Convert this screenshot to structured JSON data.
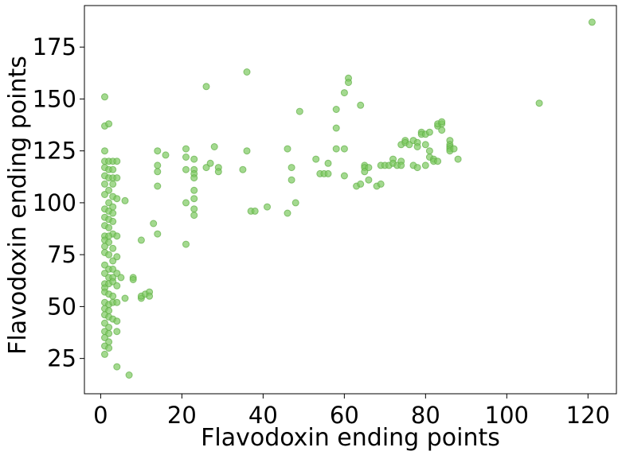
{
  "chart_data": {
    "type": "scatter",
    "title": "",
    "xlabel": "Flavodoxin ending points",
    "ylabel": "Flavodoxin ending points",
    "xlim": [
      -4,
      127
    ],
    "ylim": [
      8,
      195
    ],
    "x_ticks": [
      0,
      20,
      40,
      60,
      80,
      100,
      120
    ],
    "y_ticks": [
      25,
      50,
      75,
      100,
      125,
      150,
      175
    ],
    "grid": false,
    "legend": "none",
    "marker_color": "#7cc95f",
    "marker_edge_color": "#5fae45",
    "marker_opacity": 0.7,
    "points": [
      [
        1,
        151
      ],
      [
        1,
        137
      ],
      [
        2,
        138
      ],
      [
        1,
        125
      ],
      [
        1,
        120
      ],
      [
        2,
        120
      ],
      [
        3,
        120
      ],
      [
        4,
        120
      ],
      [
        1,
        117
      ],
      [
        2,
        116
      ],
      [
        3,
        116
      ],
      [
        1,
        113
      ],
      [
        2,
        112
      ],
      [
        3,
        112
      ],
      [
        4,
        112
      ],
      [
        1,
        109
      ],
      [
        3,
        109
      ],
      [
        2,
        106
      ],
      [
        1,
        104
      ],
      [
        3,
        103
      ],
      [
        4,
        102
      ],
      [
        6,
        101
      ],
      [
        2,
        100
      ],
      [
        3,
        98
      ],
      [
        1,
        97
      ],
      [
        2,
        96
      ],
      [
        3,
        95
      ],
      [
        1,
        93
      ],
      [
        2,
        92
      ],
      [
        3,
        91
      ],
      [
        1,
        89
      ],
      [
        2,
        88
      ],
      [
        3,
        85
      ],
      [
        1,
        84
      ],
      [
        2,
        84
      ],
      [
        4,
        84
      ],
      [
        1,
        82
      ],
      [
        2,
        81
      ],
      [
        1,
        79
      ],
      [
        3,
        78
      ],
      [
        1,
        76
      ],
      [
        2,
        75
      ],
      [
        3,
        72
      ],
      [
        4,
        74
      ],
      [
        1,
        70
      ],
      [
        2,
        68
      ],
      [
        3,
        68
      ],
      [
        1,
        66
      ],
      [
        4,
        66
      ],
      [
        2,
        64
      ],
      [
        3,
        64
      ],
      [
        5,
        64
      ],
      [
        1,
        61
      ],
      [
        2,
        61
      ],
      [
        3,
        62
      ],
      [
        1,
        59
      ],
      [
        4,
        60
      ],
      [
        1,
        57
      ],
      [
        2,
        56
      ],
      [
        3,
        55
      ],
      [
        6,
        54
      ],
      [
        1,
        52
      ],
      [
        2,
        51
      ],
      [
        3,
        52
      ],
      [
        4,
        52
      ],
      [
        1,
        49
      ],
      [
        2,
        48
      ],
      [
        1,
        46
      ],
      [
        2,
        45
      ],
      [
        3,
        44
      ],
      [
        4,
        43
      ],
      [
        1,
        42
      ],
      [
        2,
        40
      ],
      [
        1,
        38
      ],
      [
        2,
        37
      ],
      [
        4,
        38
      ],
      [
        1,
        35
      ],
      [
        2,
        33
      ],
      [
        1,
        31
      ],
      [
        2,
        30
      ],
      [
        1,
        27
      ],
      [
        4,
        21
      ],
      [
        7,
        17
      ],
      [
        8,
        64
      ],
      [
        8,
        63
      ],
      [
        10,
        54
      ],
      [
        10,
        55
      ],
      [
        11,
        56
      ],
      [
        12,
        57
      ],
      [
        12,
        55
      ],
      [
        10,
        82
      ],
      [
        13,
        90
      ],
      [
        14,
        85
      ],
      [
        14,
        108
      ],
      [
        14,
        115
      ],
      [
        14,
        118
      ],
      [
        14,
        125
      ],
      [
        16,
        123
      ],
      [
        21,
        126
      ],
      [
        21,
        122
      ],
      [
        21,
        116
      ],
      [
        21,
        100
      ],
      [
        21,
        80
      ],
      [
        23,
        121
      ],
      [
        23,
        116
      ],
      [
        23,
        114
      ],
      [
        23,
        112
      ],
      [
        23,
        106
      ],
      [
        23,
        102
      ],
      [
        23,
        97
      ],
      [
        23,
        94
      ],
      [
        26,
        156
      ],
      [
        26,
        117
      ],
      [
        27,
        119
      ],
      [
        28,
        127
      ],
      [
        29,
        117
      ],
      [
        29,
        115
      ],
      [
        35,
        116
      ],
      [
        36,
        163
      ],
      [
        36,
        125
      ],
      [
        37,
        96
      ],
      [
        38,
        96
      ],
      [
        41,
        98
      ],
      [
        46,
        126
      ],
      [
        46,
        95
      ],
      [
        47,
        117
      ],
      [
        47,
        111
      ],
      [
        48,
        100
      ],
      [
        49,
        144
      ],
      [
        53,
        121
      ],
      [
        54,
        114
      ],
      [
        55,
        114
      ],
      [
        56,
        119
      ],
      [
        56,
        114
      ],
      [
        58,
        145
      ],
      [
        58,
        136
      ],
      [
        58,
        126
      ],
      [
        60,
        126
      ],
      [
        60,
        153
      ],
      [
        61,
        160
      ],
      [
        61,
        158
      ],
      [
        60,
        113
      ],
      [
        63,
        108
      ],
      [
        64,
        147
      ],
      [
        64,
        109
      ],
      [
        65,
        118
      ],
      [
        65,
        117
      ],
      [
        66,
        117
      ],
      [
        65,
        115
      ],
      [
        66,
        111
      ],
      [
        68,
        108
      ],
      [
        69,
        118
      ],
      [
        69,
        109
      ],
      [
        70,
        118
      ],
      [
        71,
        118
      ],
      [
        72,
        121
      ],
      [
        72,
        119
      ],
      [
        73,
        118
      ],
      [
        74,
        120
      ],
      [
        74,
        118
      ],
      [
        74,
        128
      ],
      [
        75,
        130
      ],
      [
        75,
        129
      ],
      [
        76,
        128
      ],
      [
        77,
        130
      ],
      [
        77,
        118
      ],
      [
        78,
        129
      ],
      [
        78,
        127
      ],
      [
        78,
        117
      ],
      [
        79,
        134
      ],
      [
        79,
        133
      ],
      [
        80,
        133
      ],
      [
        80,
        128
      ],
      [
        80,
        118
      ],
      [
        81,
        134
      ],
      [
        81,
        125
      ],
      [
        81,
        122
      ],
      [
        82,
        121
      ],
      [
        82,
        120
      ],
      [
        83,
        120
      ],
      [
        83,
        137
      ],
      [
        83,
        138
      ],
      [
        84,
        138
      ],
      [
        84,
        139
      ],
      [
        84,
        135
      ],
      [
        86,
        130
      ],
      [
        86,
        128
      ],
      [
        86,
        127
      ],
      [
        86,
        126
      ],
      [
        86,
        125
      ],
      [
        87,
        126
      ],
      [
        88,
        121
      ],
      [
        108,
        148
      ],
      [
        121,
        187
      ]
    ]
  }
}
